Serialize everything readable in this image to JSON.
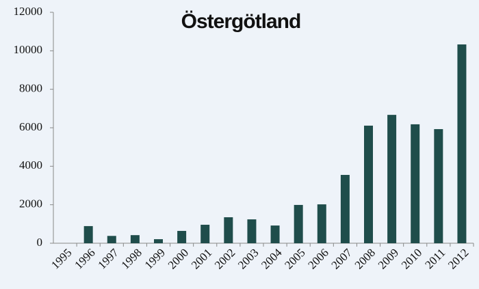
{
  "chart_data": {
    "type": "bar",
    "title": "Östergötland",
    "categories": [
      "1995",
      "1996",
      "1997",
      "1998",
      "1999",
      "2000",
      "2001",
      "2002",
      "2003",
      "2004",
      "2005",
      "2006",
      "2007",
      "2008",
      "2009",
      "2010",
      "2011",
      "2012"
    ],
    "values": [
      0,
      890,
      380,
      420,
      210,
      640,
      960,
      1350,
      1240,
      920,
      1990,
      2020,
      3550,
      6110,
      6670,
      6180,
      5930,
      10330
    ],
    "color": "#1f4d4b",
    "ylim": [
      0,
      12000
    ],
    "yticks": [
      0,
      2000,
      4000,
      6000,
      8000,
      10000,
      12000
    ],
    "grid": false
  }
}
